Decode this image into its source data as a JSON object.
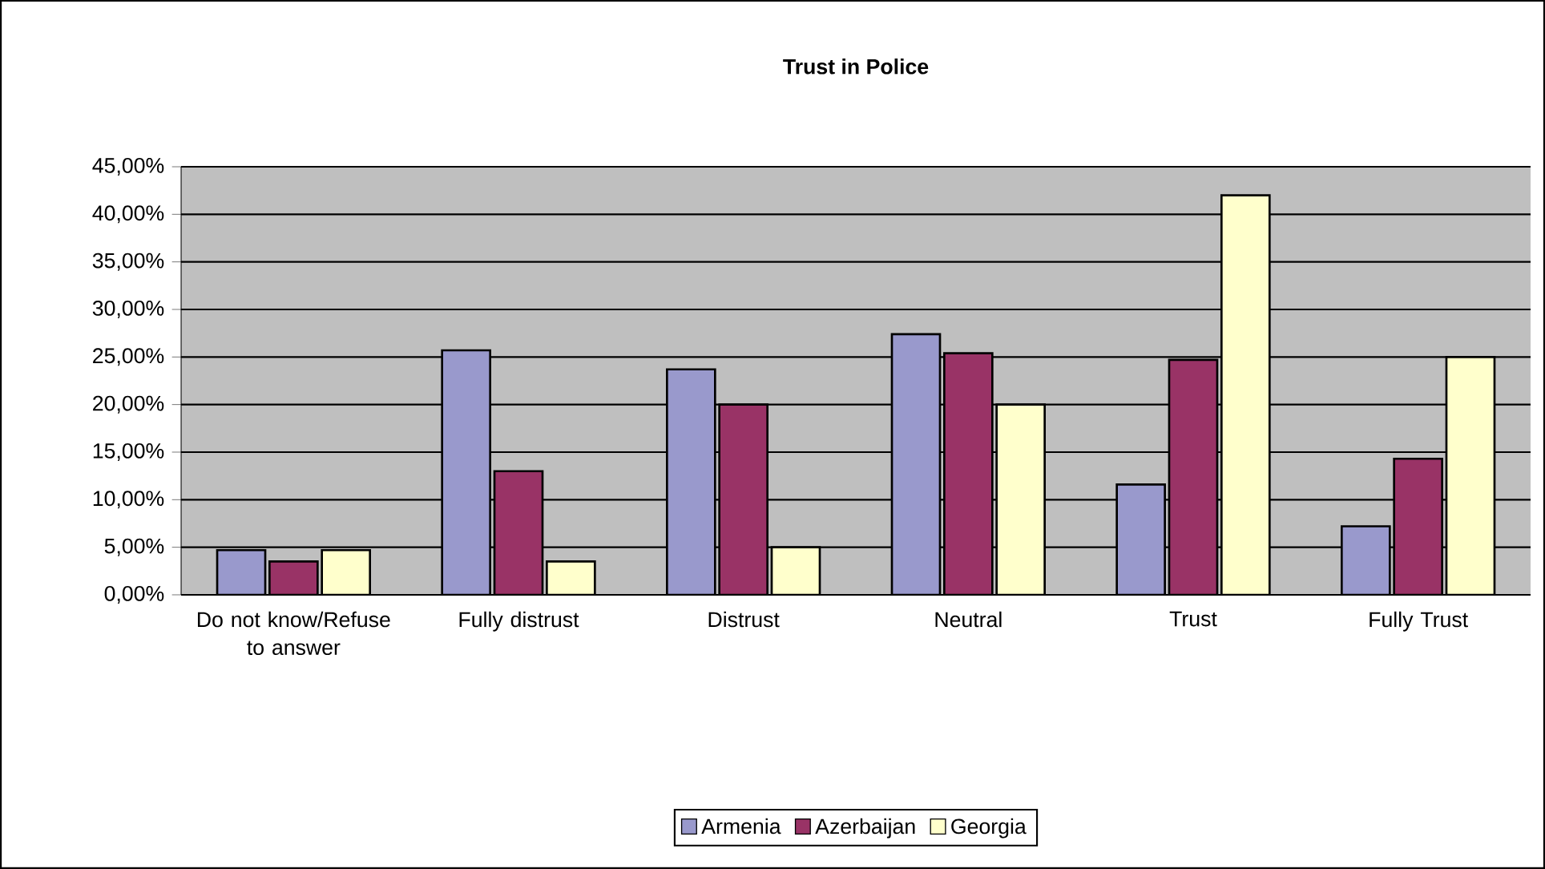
{
  "chart_data": {
    "type": "bar",
    "title": "Trust in Police",
    "categories": [
      "Do not know/Refuse to answer",
      "Fully distrust",
      "Distrust",
      "Neutral",
      "Trust",
      "Fully Trust"
    ],
    "series": [
      {
        "name": "Armenia",
        "color": "#9999cc",
        "values": [
          4.7,
          25.7,
          23.7,
          27.4,
          11.6,
          7.2
        ]
      },
      {
        "name": "Azerbaijan",
        "color": "#993366",
        "values": [
          3.5,
          13.0,
          20.0,
          25.4,
          24.7,
          14.3
        ]
      },
      {
        "name": "Georgia",
        "color": "#ffffcc",
        "values": [
          4.7,
          3.5,
          5.0,
          20.0,
          42.0,
          25.0
        ]
      }
    ],
    "ylim": [
      0,
      45
    ],
    "yticks": [
      {
        "value": 0,
        "label": "0,00%"
      },
      {
        "value": 5,
        "label": "5,00%"
      },
      {
        "value": 10,
        "label": "10,00%"
      },
      {
        "value": 15,
        "label": "15,00%"
      },
      {
        "value": 20,
        "label": "20,00%"
      },
      {
        "value": 25,
        "label": "25,00%"
      },
      {
        "value": 30,
        "label": "30,00%"
      },
      {
        "value": 35,
        "label": "35,00%"
      },
      {
        "value": 40,
        "label": "40,00%"
      },
      {
        "value": 45,
        "label": "45,00%"
      }
    ],
    "grid": "y",
    "legend": "bottom"
  }
}
